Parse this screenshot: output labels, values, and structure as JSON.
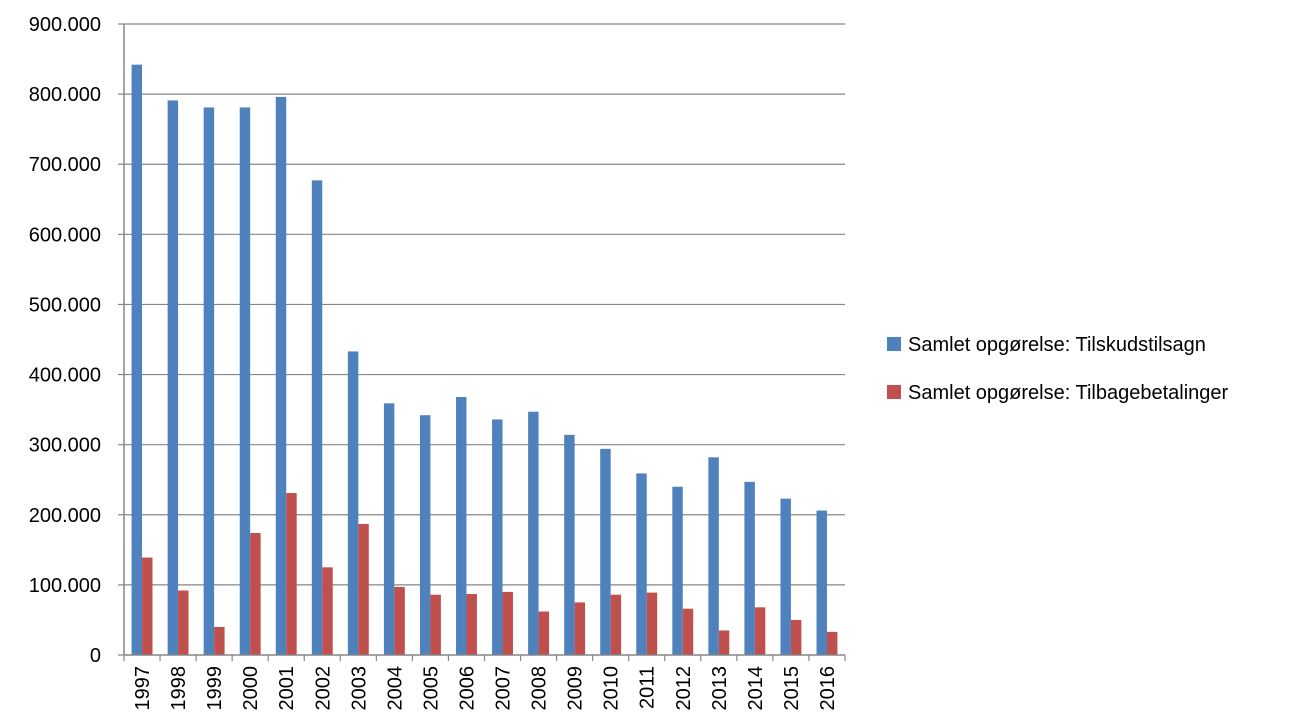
{
  "chart_data": {
    "type": "bar",
    "title": "",
    "xlabel": "",
    "ylabel": "",
    "categories": [
      "1997",
      "1998",
      "1999",
      "2000",
      "2001",
      "2002",
      "2003",
      "2004",
      "2005",
      "2006",
      "2007",
      "2008",
      "2009",
      "2010",
      "2011",
      "2012",
      "2013",
      "2014",
      "2015",
      "2016"
    ],
    "series": [
      {
        "name": "Samlet opgørelse: Tilskudstilsagn",
        "color": "#4F81BD",
        "values": [
          842000,
          791000,
          781000,
          781000,
          796000,
          677000,
          433000,
          359000,
          342000,
          368000,
          336000,
          347000,
          314000,
          294000,
          259000,
          240000,
          282000,
          247000,
          223000,
          206000
        ]
      },
      {
        "name": "Samlet opgørelse: Tilbagebetalinger",
        "color": "#C0504D",
        "values": [
          139000,
          92000,
          40000,
          174000,
          231000,
          125000,
          187000,
          97000,
          86000,
          87000,
          90000,
          62000,
          75000,
          86000,
          89000,
          66000,
          35000,
          68000,
          50000,
          33000
        ]
      }
    ],
    "ylim": [
      0,
      900000
    ],
    "yticks": [
      0,
      100000,
      200000,
      300000,
      400000,
      500000,
      600000,
      700000,
      800000,
      900000
    ],
    "ytick_labels": [
      "0",
      "100.000",
      "200.000",
      "300.000",
      "400.000",
      "500.000",
      "600.000",
      "700.000",
      "800.000",
      "900.000"
    ],
    "grid": true,
    "legend_position": "right"
  }
}
